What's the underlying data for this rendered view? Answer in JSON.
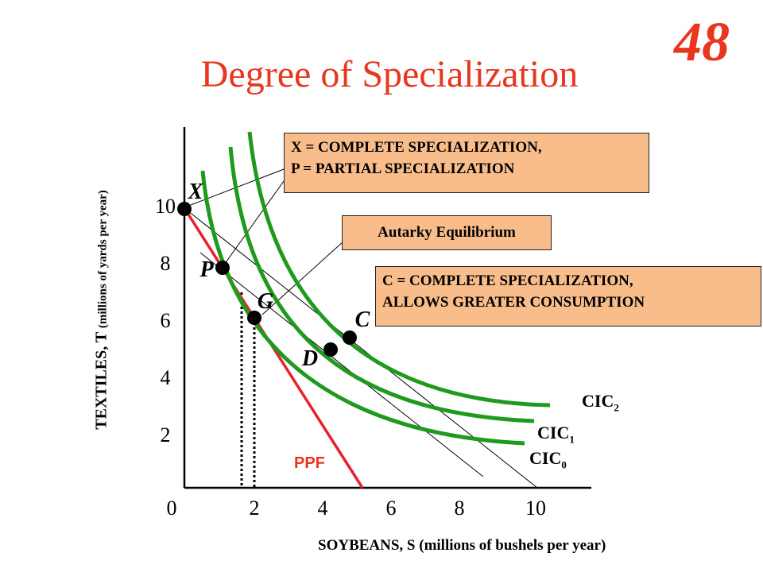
{
  "slide_number": "48",
  "title": "Degree of Specialization",
  "axes": {
    "xlabel": "SOYBEANS, S (millions of bushels per year)",
    "ylabel_main": "TEXTILES, T",
    "ylabel_sub": "(millions of yards per year)",
    "xticks": [
      "0",
      "2",
      "4",
      "6",
      "8",
      "10"
    ],
    "yticks": [
      "2",
      "4",
      "6",
      "8",
      "10"
    ]
  },
  "points": {
    "X": "X",
    "P": "P",
    "G": "G",
    "C": "C",
    "D": "D"
  },
  "curves": {
    "ppf": "PPF",
    "cic0": "CIC",
    "cic0_sub": "0",
    "cic1": "CIC",
    "cic1_sub": "1",
    "cic2": "CIC",
    "cic2_sub": "2"
  },
  "notes": {
    "xp_line1": "X = COMPLETE SPECIALIZATION,",
    "xp_line2": "P = PARTIAL SPECIALIZATION",
    "autarky": "Autarky Equilibrium",
    "c_line1": "C = COMPLETE SPECIALIZATION,",
    "c_line2": "ALLOWS GREATER CONSUMPTION"
  },
  "colors": {
    "title": "#e8361f",
    "ppf": "#e8212e",
    "cic": "#1f9a1f",
    "note_fill": "#f9bd8b"
  }
}
